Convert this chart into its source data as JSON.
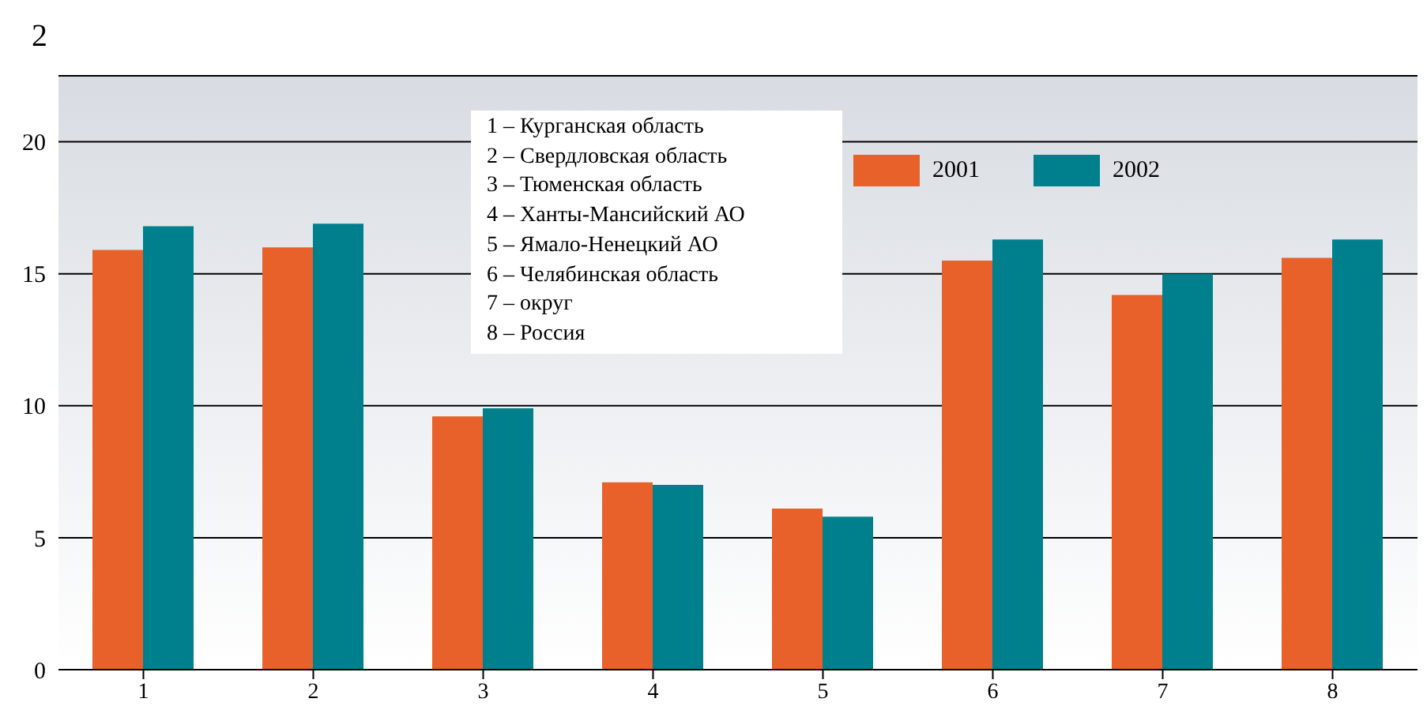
{
  "chart_data": {
    "type": "bar",
    "title": "2",
    "categories": [
      "1",
      "2",
      "3",
      "4",
      "5",
      "6",
      "7",
      "8"
    ],
    "series": [
      {
        "name": "2001",
        "color": "#e8602a",
        "values": [
          15.9,
          16.0,
          9.6,
          7.1,
          6.1,
          15.5,
          14.2,
          15.6
        ]
      },
      {
        "name": "2002",
        "color": "#00808c",
        "values": [
          16.8,
          16.9,
          9.9,
          7.0,
          5.8,
          16.3,
          15.0,
          16.3
        ]
      }
    ],
    "ylim": [
      0,
      22.5
    ],
    "yticks": [
      0,
      5,
      10,
      15,
      20
    ],
    "grid": "y",
    "legend": "top right",
    "annotations": [
      "1 – Курганская область",
      "2 – Свердловская область",
      "3 – Тюменская область",
      "4 – Ханты-Мансийский АО",
      "5 – Ямало-Ненецкий АО",
      "6 – Челябинская область",
      "7 – округ",
      "8 – Россия"
    ]
  }
}
